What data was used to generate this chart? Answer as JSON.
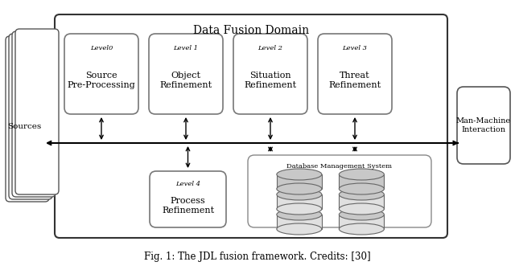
{
  "title": "Data Fusion Domain",
  "caption": "Fig. 1: The JDL fusion framework. Credits: [30]",
  "background_color": "#ffffff",
  "top_boxes": [
    {
      "label_italic": "Level0",
      "label_main": "Source\nPre-Processing"
    },
    {
      "label_italic": "Level 1",
      "label_main": "Object\nRefinement"
    },
    {
      "label_italic": "Level 2",
      "label_main": "Situation\nRefinement"
    },
    {
      "label_italic": "Level 3",
      "label_main": "Threat\nRefinement"
    }
  ],
  "level4": {
    "label_italic": "Level 4",
    "label_main": "Process\nRefinement"
  },
  "colors": {
    "text": "#000000",
    "arrow": "#000000",
    "box_edge": "#555555",
    "outer_edge": "#333333",
    "bg": "#ffffff"
  }
}
